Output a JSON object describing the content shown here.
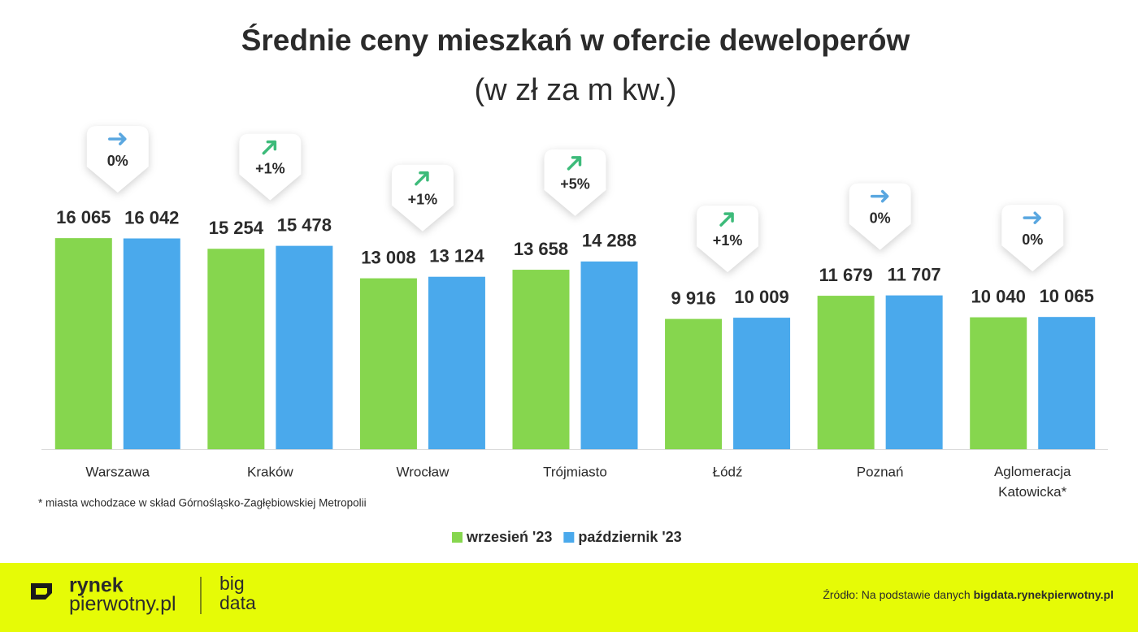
{
  "chart_data": {
    "type": "bar",
    "title": "Średnie ceny mieszkań w ofercie deweloperów",
    "subtitle": "(w zł za m kw.)",
    "categories": [
      "Warszawa",
      "Kraków",
      "Wrocław",
      "Trójmiasto",
      "Łódź",
      "Poznań",
      "Aglomeracja Katowicka*"
    ],
    "series": [
      {
        "name": "wrzesień '23",
        "color": "#86d64e",
        "values": [
          16065,
          15254,
          13008,
          13658,
          9916,
          11679,
          10040
        ],
        "value_labels": [
          "16 065",
          "15 254",
          "13 008",
          "13 658",
          "9 916",
          "11 679",
          "10 040"
        ]
      },
      {
        "name": "październik '23",
        "color": "#4aa9ec",
        "values": [
          16042,
          15478,
          13124,
          14288,
          10009,
          11707,
          10065
        ],
        "value_labels": [
          "16 042",
          "15 478",
          "13 124",
          "14 288",
          "10 009",
          "11 707",
          "10 065"
        ]
      }
    ],
    "change_labels": [
      "0%",
      "+1%",
      "+1%",
      "+5%",
      "+1%",
      "0%",
      "0%"
    ],
    "ylim": [
      0,
      17000
    ],
    "note": "* miasta wchodzace w skład Górnośląsko-Zagłębiowskiej Metropolii"
  },
  "footer": {
    "logo_top": "rynek",
    "logo_bottom": "pierwotny.pl",
    "brand_top": "big",
    "brand_bottom": "data",
    "source_text": "Źródło: Na podstawie danych",
    "source_link": "bigdata.rynekpierwotny.pl"
  }
}
